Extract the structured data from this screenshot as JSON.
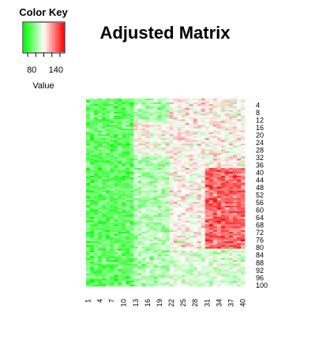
{
  "chart_data": {
    "type": "heatmap",
    "title": "Adjusted Matrix",
    "n_rows": 100,
    "n_cols": 40,
    "row_labels": [
      "4",
      "8",
      "12",
      "16",
      "20",
      "24",
      "28",
      "32",
      "36",
      "40",
      "44",
      "48",
      "52",
      "56",
      "60",
      "64",
      "68",
      "72",
      "76",
      "80",
      "84",
      "88",
      "92",
      "96",
      "100"
    ],
    "col_labels": [
      "1",
      "4",
      "7",
      "10",
      "13",
      "16",
      "19",
      "22",
      "25",
      "28",
      "31",
      "34",
      "37",
      "40"
    ],
    "color_key": {
      "title": "Color Key",
      "axis_label": "Value",
      "ticks": [
        "80",
        "140"
      ],
      "range": [
        60,
        160
      ],
      "low_color": "#00ff00",
      "mid_color": "#ffffff",
      "high_color": "#ff0000"
    },
    "blocks": [
      {
        "rows": [
          1,
          100
        ],
        "cols": [
          1,
          12
        ],
        "mean": 80
      },
      {
        "rows": [
          1,
          100
        ],
        "cols": [
          13,
          21
        ],
        "mean": 95
      },
      {
        "rows": [
          13,
          30
        ],
        "cols": [
          13,
          21
        ],
        "mean": 110
      },
      {
        "rows": [
          1,
          100
        ],
        "cols": [
          22,
          40
        ],
        "mean": 112
      },
      {
        "rows": [
          38,
          80
        ],
        "cols": [
          31,
          40
        ],
        "mean": 140
      },
      {
        "rows": [
          81,
          100
        ],
        "cols": [
          22,
          40
        ],
        "mean": 103
      }
    ]
  }
}
